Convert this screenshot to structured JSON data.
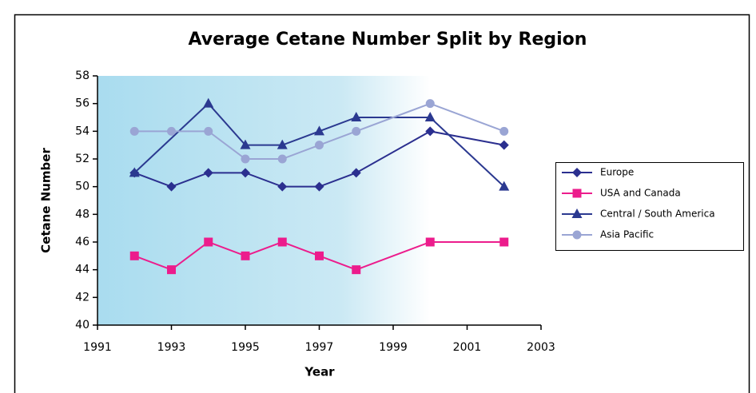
{
  "chart_data": {
    "type": "line",
    "title": "Average Cetane Number Split by Region",
    "x_label": "Year",
    "y_label": "Cetane Number",
    "xlim": [
      1991,
      2003
    ],
    "xticks": [
      1991,
      1993,
      1995,
      1997,
      1999,
      2001,
      2003
    ],
    "ylim": [
      40,
      58
    ],
    "yticks": [
      40,
      42,
      44,
      46,
      48,
      50,
      52,
      54,
      56,
      58
    ],
    "legend": "right",
    "series": [
      {
        "name": "Europe",
        "color": "#2b2f8f",
        "marker": "diamond",
        "x": [
          1992,
          1993,
          1994,
          1995,
          1996,
          1997,
          1998,
          2000,
          2002
        ],
        "values": [
          51,
          50,
          51,
          51,
          50,
          50,
          51,
          54,
          53
        ]
      },
      {
        "name": "USA and Canada",
        "color": "#ec1c8c",
        "marker": "square",
        "x": [
          1992,
          1993,
          1994,
          1995,
          1996,
          1997,
          1998,
          2000,
          2002
        ],
        "values": [
          45,
          44,
          46,
          45,
          46,
          45,
          44,
          46,
          46
        ]
      },
      {
        "name": "Central / South America",
        "color": "#2b3990",
        "marker": "triangle",
        "x": [
          1992,
          1994,
          1995,
          1996,
          1997,
          1998,
          2000,
          2002
        ],
        "values": [
          51,
          56,
          53,
          53,
          54,
          55,
          55,
          50
        ]
      },
      {
        "name": "Asia Pacific",
        "color": "#9aa5d4",
        "marker": "circle",
        "x": [
          1992,
          1993,
          1994,
          1995,
          1996,
          1997,
          1998,
          2000,
          2002
        ],
        "values": [
          54,
          54,
          54,
          52,
          52,
          53,
          54,
          56,
          54
        ]
      }
    ]
  }
}
